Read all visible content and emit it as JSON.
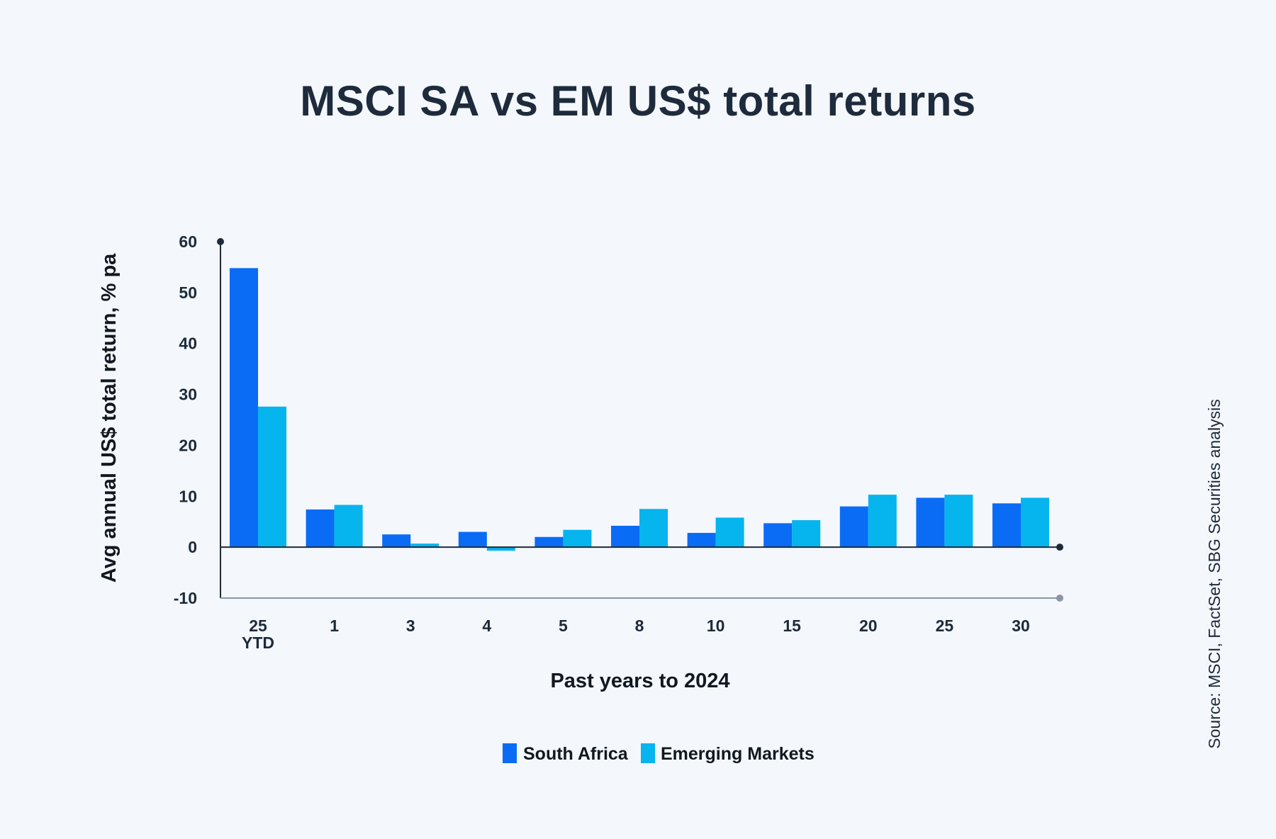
{
  "chart_data": {
    "type": "bar",
    "title": "MSCI SA vs EM US$ total returns",
    "xlabel": "Past years to 2024",
    "ylabel": "Avg annual US$ total return, % pa",
    "ylim": [
      -10,
      60
    ],
    "yticks": [
      60,
      50,
      40,
      30,
      20,
      10,
      0,
      -10
    ],
    "categories": [
      {
        "line1": "25",
        "line2": "YTD"
      },
      {
        "line1": "1",
        "line2": ""
      },
      {
        "line1": "3",
        "line2": ""
      },
      {
        "line1": "4",
        "line2": ""
      },
      {
        "line1": "5",
        "line2": ""
      },
      {
        "line1": "8",
        "line2": ""
      },
      {
        "line1": "10",
        "line2": ""
      },
      {
        "line1": "15",
        "line2": ""
      },
      {
        "line1": "20",
        "line2": ""
      },
      {
        "line1": "25",
        "line2": ""
      },
      {
        "line1": "30",
        "line2": ""
      }
    ],
    "series": [
      {
        "name": "South Africa",
        "color": "#0a6cf5",
        "values": [
          54.8,
          7.4,
          2.5,
          3.0,
          2.0,
          4.2,
          2.8,
          4.7,
          8.0,
          9.7,
          8.6
        ]
      },
      {
        "name": "Emerging Markets",
        "color": "#06b4ee",
        "values": [
          27.6,
          8.3,
          0.7,
          -0.7,
          3.4,
          7.5,
          5.8,
          5.3,
          10.3,
          10.3,
          9.7
        ]
      }
    ],
    "legend_position": "bottom-center",
    "source": "Source: MSCI, FactSet, SBG Securities analysis"
  }
}
